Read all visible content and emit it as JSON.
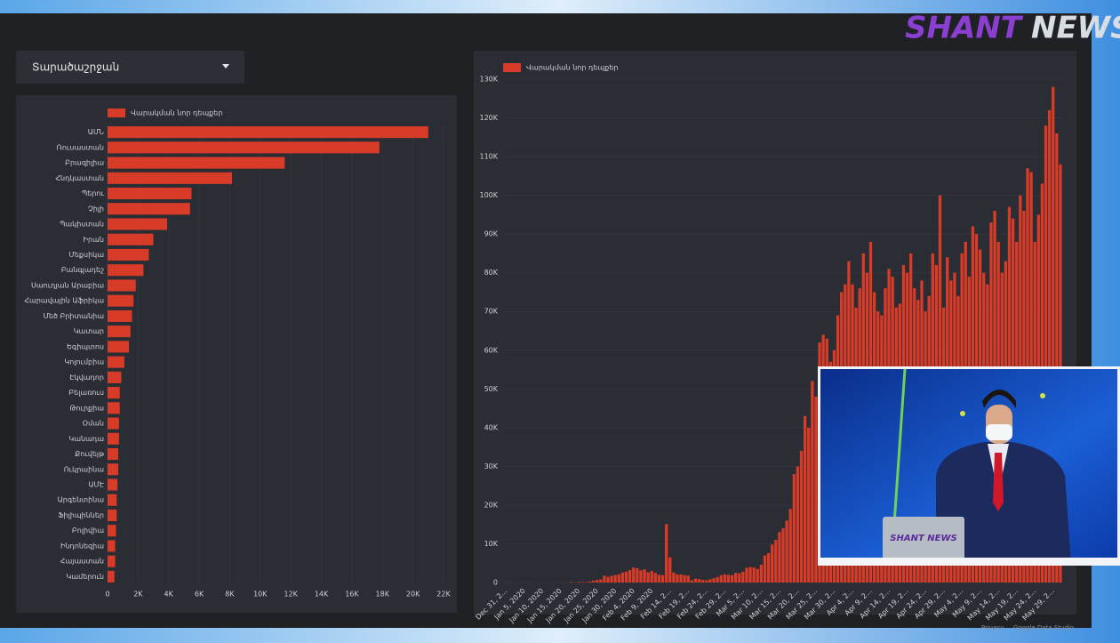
{
  "dropdown": {
    "label": "Տարածաշրջան"
  },
  "logo": {
    "brand": "SHANT",
    "news": "NEWS"
  },
  "footer": {
    "privacy": "Privacy",
    "brand": "Google Data Studio"
  },
  "inset": {
    "laptop_logo": "SHANT NEWS"
  },
  "chart_data": [
    {
      "type": "bar",
      "orientation": "horizontal",
      "grid": true,
      "categories": [
        "ԱՄՆ",
        "Ռուսաստան",
        "Բրազիլիա",
        "Հնդկաստան",
        "Պերու",
        "Չիլի",
        "Պակիստան",
        "Իրան",
        "Մեքսիկա",
        "Բանգլադեշ",
        "Սաուդյան Արաբիա",
        "Հարավային Աֆրիկա",
        "Մեծ Բրիտանիա",
        "Կատար",
        "Եգիպտոս",
        "Կոլումբիա",
        "Էկվադոր",
        "Բելառուս",
        "Թուրքիա",
        "Օման",
        "Կանադա",
        "Քուվեյթ",
        "Ուկրաինա",
        "ԱՄԷ",
        "Արգենտինա",
        "Ֆիլիպիններ",
        "Բոլիվիա",
        "Ինդոնեզիա",
        "Հայաստան",
        "Կամերուն"
      ],
      "series": [
        {
          "name": "Վարակման նոր դեպքեր",
          "color": "#d83b27",
          "values": [
            21000,
            17800,
            11600,
            8150,
            5500,
            5400,
            3900,
            3000,
            2700,
            2350,
            1850,
            1700,
            1600,
            1500,
            1400,
            1100,
            900,
            800,
            800,
            750,
            750,
            700,
            700,
            650,
            600,
            600,
            550,
            500,
            500,
            450
          ]
        }
      ],
      "xlim": [
        0,
        22000
      ],
      "xticks": [
        0,
        {
          "value": 2000,
          "label": "2K"
        },
        {
          "value": 4000,
          "label": "4K"
        },
        {
          "value": 6000,
          "label": "6K"
        },
        {
          "value": 8000,
          "label": "8K"
        },
        {
          "value": 10000,
          "label": "10K"
        },
        {
          "value": 12000,
          "label": "12K"
        },
        {
          "value": 14000,
          "label": "14K"
        },
        {
          "value": 16000,
          "label": "16K"
        },
        {
          "value": 18000,
          "label": "18K"
        },
        {
          "value": 20000,
          "label": "20K"
        },
        {
          "value": 22000,
          "label": "22K"
        }
      ]
    },
    {
      "type": "bar",
      "orientation": "vertical",
      "grid": true,
      "categories": [
        "Dec 31, 2...",
        null,
        null,
        null,
        null,
        "Jan 5, 2020",
        null,
        null,
        null,
        null,
        "Jan 10, 2020",
        null,
        null,
        null,
        null,
        "Jan 15, 2020",
        null,
        null,
        null,
        null,
        "Jan 20, 2020",
        null,
        null,
        null,
        null,
        "Jan 25, 2020",
        null,
        null,
        null,
        null,
        "Jan 30, 2020",
        null,
        null,
        null,
        null,
        "Feb 4, 2020",
        null,
        null,
        null,
        null,
        "Feb 9, 2020",
        null,
        null,
        null,
        null,
        "Feb 14, 2...",
        null,
        null,
        null,
        null,
        "Feb 19, 2...",
        null,
        null,
        null,
        null,
        "Feb 24, 2...",
        null,
        null,
        null,
        null,
        "Feb 29, 2...",
        null,
        null,
        null,
        null,
        "Mar 5, 2...",
        null,
        null,
        null,
        null,
        "Mar 10, 2...",
        null,
        null,
        null,
        null,
        "Mar 15, 2...",
        null,
        null,
        null,
        null,
        "Mar 20, 2...",
        null,
        null,
        null,
        null,
        "Mar 25, 2...",
        null,
        null,
        null,
        null,
        "Mar 30, 2...",
        null,
        null,
        null,
        null,
        "Apr 4, 2...",
        null,
        null,
        null,
        null,
        "Apr 9, 2...",
        null,
        null,
        null,
        null,
        "Apr 14, 2...",
        null,
        null,
        null,
        null,
        "Apr 19, 2...",
        null,
        null,
        null,
        null,
        "Apr 24, 2...",
        null,
        null,
        null,
        null,
        "Apr 29, 2...",
        null,
        null,
        null,
        null,
        "May 4, 2...",
        null,
        null,
        null,
        null,
        "May 9, 2...",
        null,
        null,
        null,
        null,
        "May 14, 2...",
        null,
        null,
        null,
        null,
        "May 19, 2...",
        null,
        null,
        null,
        null,
        "May 24, 2...",
        null,
        null,
        null,
        null,
        "May 29, 2...",
        null,
        null
      ],
      "series": [
        {
          "name": "Վարակման նոր դեպքեր",
          "color": "#d83b27",
          "values": [
            27,
            0,
            0,
            0,
            17,
            0,
            15,
            0,
            0,
            0,
            0,
            0,
            1,
            0,
            0,
            0,
            4,
            17,
            136,
            19,
            151,
            140,
            97,
            259,
            441,
            665,
            787,
            1753,
            1466,
            1740,
            1980,
            2100,
            2590,
            2820,
            3230,
            3890,
            3700,
            3160,
            3420,
            2650,
            3000,
            2500,
            2000,
            1900,
            15100,
            6500,
            2600,
            2100,
            2100,
            1900,
            1800,
            550,
            1000,
            900,
            650,
            600,
            850,
            1100,
            1400,
            1900,
            2100,
            2000,
            1900,
            2500,
            2400,
            2800,
            3800,
            4000,
            3900,
            3500,
            4600,
            7000,
            7600,
            9800,
            11000,
            13000,
            14000,
            16000,
            19000,
            28000,
            30000,
            34000,
            43000,
            40000,
            52000,
            48000,
            62000,
            64000,
            63000,
            57000,
            60000,
            69000,
            75000,
            77000,
            83000,
            77000,
            71000,
            76000,
            85000,
            80000,
            88000,
            75000,
            70000,
            69000,
            76000,
            81000,
            79000,
            71000,
            72000,
            82000,
            80000,
            85000,
            76000,
            73000,
            78000,
            70000,
            74000,
            85000,
            82000,
            100000,
            71000,
            84000,
            78000,
            80000,
            74000,
            85000,
            88000,
            79000,
            92000,
            90000,
            86000,
            80000,
            77000,
            93000,
            96000,
            88000,
            80000,
            83000,
            97000,
            94000,
            88000,
            100000,
            96000,
            107000,
            106000,
            88000,
            95000,
            103000,
            118000,
            122000,
            128000,
            116000,
            108000
          ]
        }
      ],
      "ylim": [
        0,
        130000
      ],
      "yticks": [
        0,
        {
          "value": 10000,
          "label": "10K"
        },
        {
          "value": 20000,
          "label": "20K"
        },
        {
          "value": 30000,
          "label": "30K"
        },
        {
          "value": 40000,
          "label": "40K"
        },
        {
          "value": 50000,
          "label": "50K"
        },
        {
          "value": 60000,
          "label": "60K"
        },
        {
          "value": 70000,
          "label": "70K"
        },
        {
          "value": 80000,
          "label": "80K"
        },
        {
          "value": 90000,
          "label": "90K"
        },
        {
          "value": 100000,
          "label": "100K"
        },
        {
          "value": 110000,
          "label": "110K"
        },
        {
          "value": 120000,
          "label": "120K"
        },
        {
          "value": 130000,
          "label": "130K"
        }
      ]
    }
  ]
}
